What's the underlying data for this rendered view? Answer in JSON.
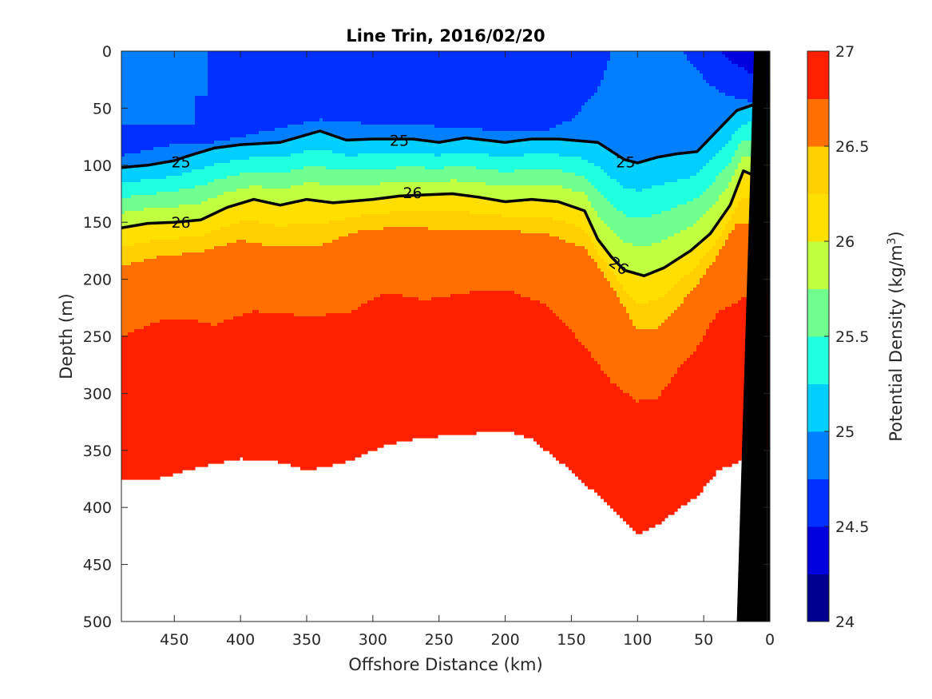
{
  "chart_data": {
    "type": "contour",
    "title": "Line Trin, 2016/02/20",
    "xlabel": "Offshore Distance (km)",
    "ylabel": "Depth (m)",
    "colorbar_label": "Potential Density (kg/m",
    "colorbar_label_sup": "3",
    "colorbar_label_end": ")",
    "xlim": [
      490,
      0
    ],
    "ylim": [
      0,
      500
    ],
    "x_reversed": true,
    "y_reversed": true,
    "xticks": [
      450,
      400,
      350,
      300,
      250,
      200,
      150,
      100,
      50,
      0
    ],
    "yticks": [
      0,
      50,
      100,
      150,
      200,
      250,
      300,
      350,
      400,
      450,
      500
    ],
    "colorbar": {
      "range": [
        24,
        27
      ],
      "ticks": [
        24,
        24.5,
        25,
        25.5,
        26,
        26.5,
        27
      ],
      "levels": [
        24.0,
        24.25,
        24.5,
        24.75,
        25.0,
        25.25,
        25.5,
        25.75,
        26.0,
        26.25,
        26.5,
        26.75,
        27.0
      ],
      "colors": [
        "#00008f",
        "#0000df",
        "#0030ff",
        "#0080ff",
        "#00cfff",
        "#20ffdf",
        "#70ff8f",
        "#bfff40",
        "#ffdf00",
        "#ffcf00",
        "#ff7000",
        "#ff2000",
        "#cf0000"
      ]
    },
    "contour_labels": [
      {
        "value": "25",
        "x": 445,
        "y": 97
      },
      {
        "value": "25",
        "x": 280,
        "y": 78
      },
      {
        "value": "25",
        "x": 109,
        "y": 97
      },
      {
        "value": "26",
        "x": 445,
        "y": 150
      },
      {
        "value": "26",
        "x": 270,
        "y": 124
      },
      {
        "value": "26",
        "x": 114,
        "y": 188
      }
    ],
    "bold_contours": [
      {
        "level": 25,
        "x": [
          490,
          470,
          450,
          440,
          420,
          400,
          370,
          340,
          320,
          300,
          270,
          250,
          230,
          200,
          180,
          160,
          130,
          110,
          100,
          85,
          70,
          55,
          40,
          25,
          10
        ],
        "y": [
          102,
          100,
          96,
          92,
          85,
          82,
          80,
          70,
          78,
          77,
          77,
          80,
          76,
          80,
          77,
          77,
          80,
          95,
          98,
          93,
          90,
          88,
          70,
          52,
          46
        ]
      },
      {
        "level": 26,
        "x": [
          490,
          470,
          450,
          430,
          410,
          390,
          370,
          350,
          330,
          300,
          280,
          260,
          240,
          220,
          200,
          180,
          160,
          140,
          130,
          120,
          110,
          95,
          80,
          60,
          45,
          30,
          20,
          10
        ],
        "y": [
          155,
          151,
          150,
          148,
          137,
          130,
          135,
          130,
          133,
          130,
          127,
          126,
          125,
          128,
          132,
          130,
          132,
          140,
          165,
          180,
          192,
          197,
          190,
          175,
          160,
          135,
          105,
          110
        ]
      }
    ],
    "bathymetry": {
      "x": [
        12,
        2,
        2,
        25
      ],
      "y": [
        0,
        0,
        500,
        500
      ]
    }
  }
}
